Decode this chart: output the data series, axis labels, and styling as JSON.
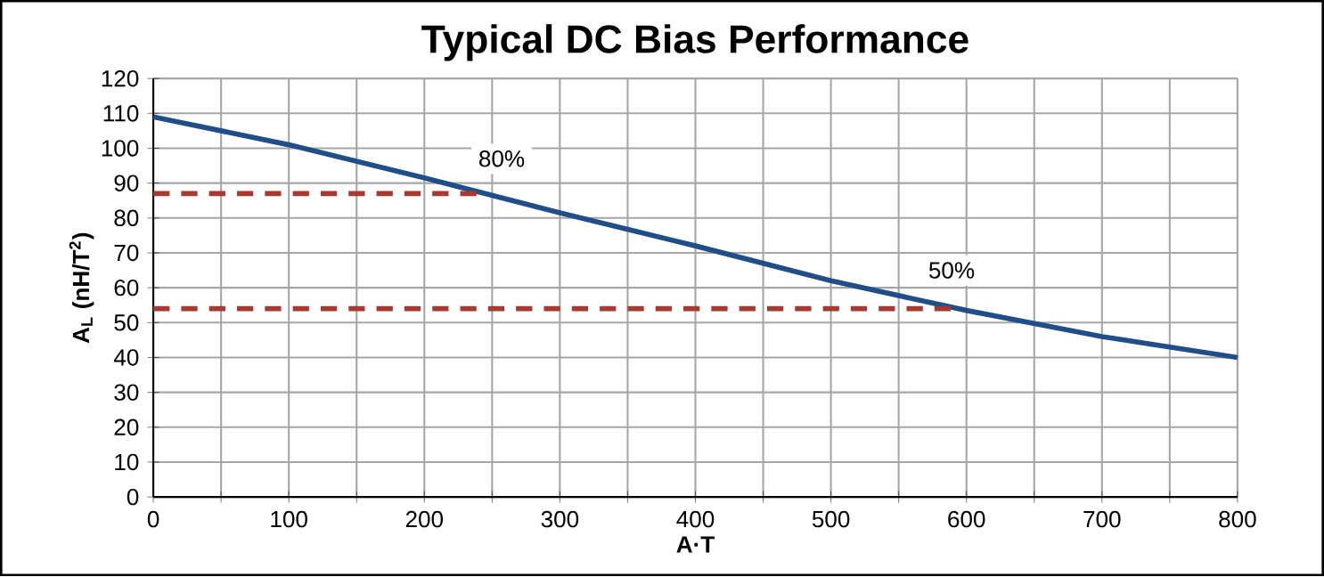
{
  "chart_data": {
    "type": "line",
    "title": "Typical DC Bias Performance",
    "xlabel": "A·T",
    "ylabel": "A$_{L}$ (nH/T$^{2}$)",
    "xlim": [
      0,
      800
    ],
    "ylim": [
      0,
      120
    ],
    "xticks": [
      0,
      {
        "value": 50,
        "label": null
      },
      100,
      {
        "value": 150,
        "label": null
      },
      200,
      {
        "value": 250,
        "label": null
      },
      300,
      {
        "value": 350,
        "label": null
      },
      400,
      {
        "value": 450,
        "label": null
      },
      500,
      {
        "value": 550,
        "label": null
      },
      600,
      {
        "value": 650,
        "label": null
      },
      700,
      {
        "value": 750,
        "label": null
      },
      800
    ],
    "yticks": [
      0,
      10,
      20,
      30,
      40,
      50,
      60,
      70,
      80,
      90,
      100,
      110,
      120
    ],
    "grid": true,
    "marker": "none",
    "series": [
      {
        "color": "#1f4e89",
        "x": [
          0,
          100,
          200,
          300,
          400,
          500,
          600,
          700,
          800
        ],
        "values": [
          109,
          101,
          91.5,
          81.5,
          72,
          62,
          53.5,
          46,
          40
        ],
        "line_style": "solid"
      },
      {
        "color": "#a83a32",
        "x": [
          0,
          240
        ],
        "values": [
          87,
          87
        ],
        "line_style": "dashed"
      },
      {
        "color": "#a83a32",
        "x": [
          0,
          590
        ],
        "values": [
          54,
          54
        ],
        "line_style": "dashed"
      }
    ],
    "annotations": [
      {
        "text": "80%",
        "x": 257,
        "y": 97
      },
      {
        "text": "50%",
        "x": 589,
        "y": 65
      }
    ]
  }
}
